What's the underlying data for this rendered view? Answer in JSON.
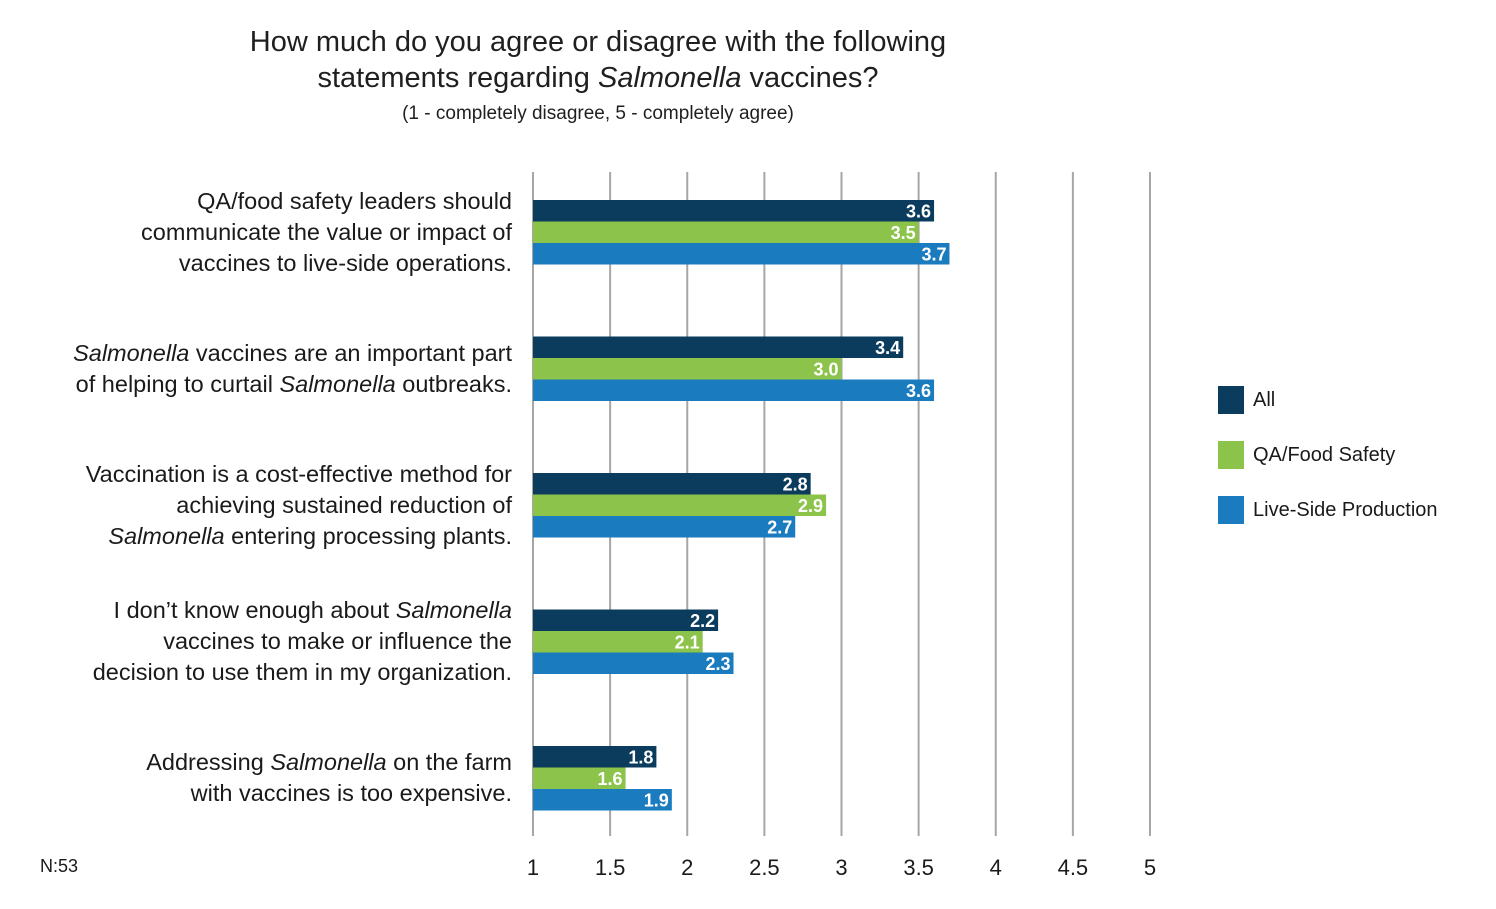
{
  "chart_data": {
    "type": "bar",
    "orientation": "horizontal",
    "title_parts": [
      [
        {
          "text": "How much do you agree or disagree with the following",
          "italic": false
        }
      ],
      [
        {
          "text": "statements regarding ",
          "italic": false
        },
        {
          "text": "Salmonella",
          "italic": true
        },
        {
          "text": " vaccines?",
          "italic": false
        }
      ]
    ],
    "subtitle": "(1 - completely disagree, 5 - completely agree)",
    "categories": [
      [
        [
          {
            "text": "QA/food safety leaders should",
            "italic": false
          }
        ],
        [
          {
            "text": "communicate the value or impact of",
            "italic": false
          }
        ],
        [
          {
            "text": "vaccines to live-side operations.",
            "italic": false
          }
        ]
      ],
      [
        [
          {
            "text": "Salmonella",
            "italic": true
          },
          {
            "text": " vaccines are an important part",
            "italic": false
          }
        ],
        [
          {
            "text": "of helping to curtail ",
            "italic": false
          },
          {
            "text": "Salmonella",
            "italic": true
          },
          {
            "text": " outbreaks.",
            "italic": false
          }
        ]
      ],
      [
        [
          {
            "text": "Vaccination is a cost-effective method for",
            "italic": false
          }
        ],
        [
          {
            "text": "achieving sustained reduction of",
            "italic": false
          }
        ],
        [
          {
            "text": "Salmonella",
            "italic": true
          },
          {
            "text": " entering processing plants.",
            "italic": false
          }
        ]
      ],
      [
        [
          {
            "text": "I don’t know enough about ",
            "italic": false
          },
          {
            "text": "Salmonella",
            "italic": true
          }
        ],
        [
          {
            "text": "vaccines to make or influence the",
            "italic": false
          }
        ],
        [
          {
            "text": "decision to use them in my organization.",
            "italic": false
          }
        ]
      ],
      [
        [
          {
            "text": "Addressing ",
            "italic": false
          },
          {
            "text": "Salmonella",
            "italic": true
          },
          {
            "text": " on the farm",
            "italic": false
          }
        ],
        [
          {
            "text": "with vaccines is too expensive.",
            "italic": false
          }
        ]
      ]
    ],
    "series": [
      {
        "name": "All",
        "color": "#0b3c5d",
        "values": [
          3.6,
          3.4,
          2.8,
          2.2,
          1.8
        ],
        "labels": [
          "3.6",
          "3.4",
          "2.8",
          "2.2",
          "1.8"
        ]
      },
      {
        "name": "QA/Food Safety",
        "color": "#8cc34a",
        "values": [
          3.5,
          3.0,
          2.9,
          2.1,
          1.6
        ],
        "labels": [
          "3.5",
          "3.0",
          "2.9",
          "2.1",
          "1.6"
        ]
      },
      {
        "name": "Live-Side Production",
        "color": "#1a7bbf",
        "values": [
          3.7,
          3.6,
          2.7,
          2.3,
          1.9
        ],
        "labels": [
          "3.7",
          "3.6",
          "2.7",
          "2.3",
          "1.9"
        ]
      }
    ],
    "xlim": [
      1,
      5
    ],
    "xticks": [
      1,
      1.5,
      2,
      2.5,
      3,
      3.5,
      4,
      4.5,
      5
    ],
    "xtick_labels": [
      "1",
      "1.5",
      "2",
      "2.5",
      "3",
      "3.5",
      "4",
      "4.5",
      "5"
    ],
    "grid": true,
    "gridline_color": "#a6a6a6",
    "legend_position": "right",
    "note": "N:53"
  }
}
